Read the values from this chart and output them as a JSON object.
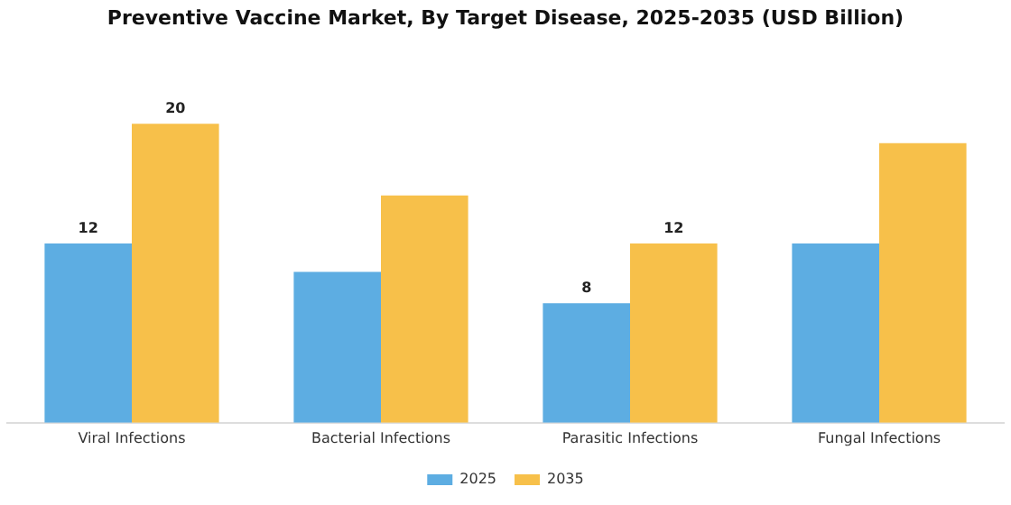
{
  "chart_data": {
    "type": "bar",
    "title": "Preventive Vaccine Market, By Target Disease, 2025-2035 (USD Billion)",
    "categories": [
      "Viral Infections",
      "Bacterial Infections",
      "Parasitic Infections",
      "Fungal Infections"
    ],
    "series": [
      {
        "name": "2025",
        "color": "#5dade2",
        "values": [
          12,
          10.1,
          8,
          12
        ],
        "value_labels": [
          "12",
          null,
          "8",
          null
        ]
      },
      {
        "name": "2035",
        "color": "#f7c04a",
        "values": [
          20,
          15.2,
          12,
          18.7
        ],
        "value_labels": [
          "20",
          null,
          "12",
          null
        ]
      }
    ],
    "legend": "bottom",
    "grid": false,
    "tick_labels": "x"
  }
}
